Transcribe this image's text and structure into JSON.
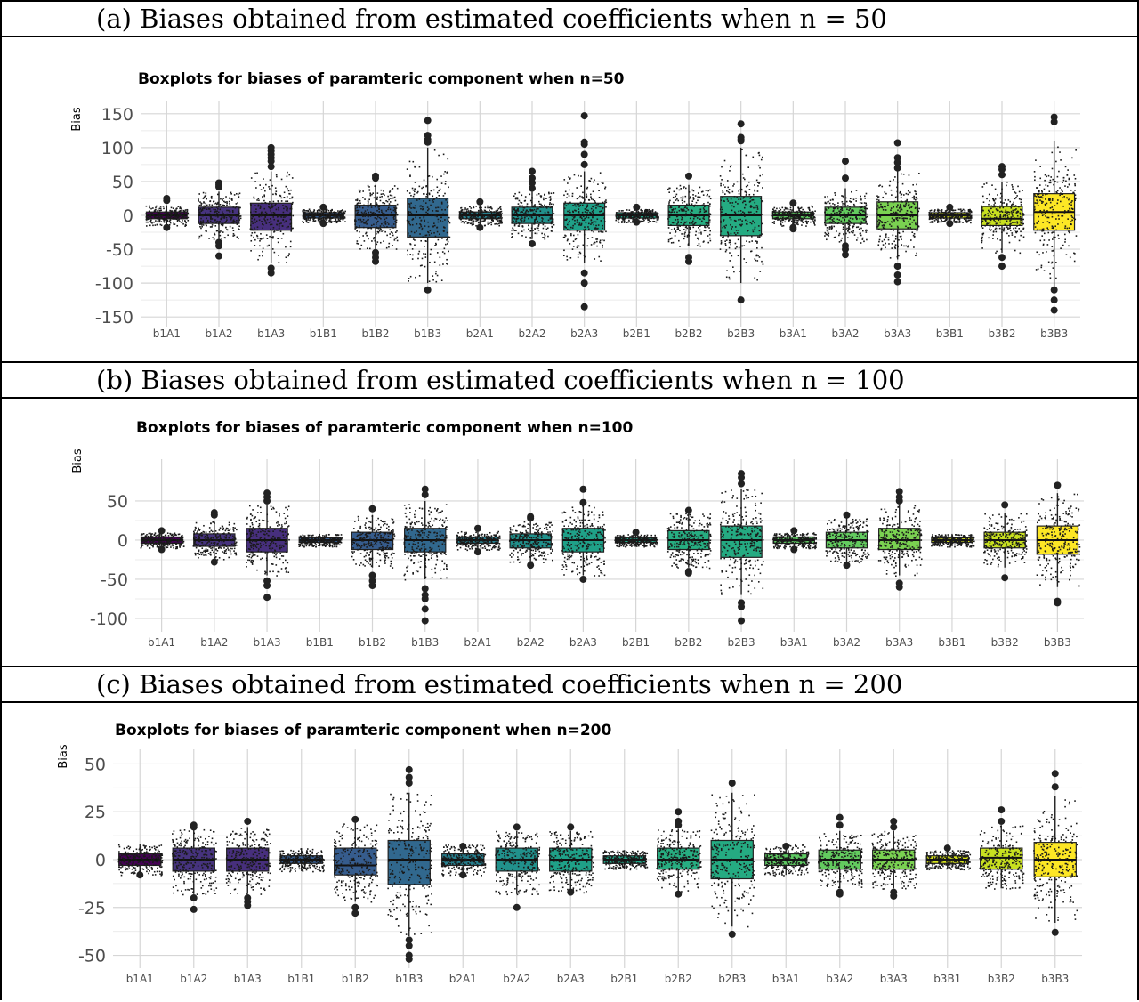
{
  "captions": [
    "(a)  Biases obtained from estimated coefficients when n = 50",
    "(b)  Biases obtained from estimated coefficients when n = 100",
    "(c)  Biases obtained from estimated coefficients when n = 200"
  ],
  "chart_data": [
    {
      "type": "boxplot",
      "title": "Boxplots for biases of paramteric component when n=50",
      "ylabel": "Bias",
      "xlabel": "",
      "ylim": [
        -155,
        155
      ],
      "yticks": [
        -150,
        -100,
        -50,
        0,
        50,
        100,
        150
      ],
      "grid": true,
      "categories": [
        "b1A1",
        "b1A2",
        "b1A3",
        "b1B1",
        "b1B2",
        "b1B3",
        "b2A1",
        "b2A2",
        "b2A3",
        "b2B1",
        "b2B2",
        "b2B3",
        "b3A1",
        "b3A2",
        "b3A3",
        "b3B1",
        "b3B2",
        "b3B3"
      ],
      "colors": [
        "#440154",
        "#46337e",
        "#472f7d",
        "#365c8d",
        "#365c8d",
        "#31688e",
        "#277f8e",
        "#21918c",
        "#1fa188",
        "#20a486",
        "#27ad81",
        "#25ab82",
        "#5ec962",
        "#63cb5f",
        "#7ad151",
        "#d5e21a",
        "#c8e020",
        "#fde725"
      ],
      "boxes": [
        {
          "q1": -5,
          "median": 0,
          "q3": 5,
          "lower": -15,
          "upper": 15,
          "outliers": [
            22,
            25,
            -18
          ]
        },
        {
          "q1": -12,
          "median": 0,
          "q3": 12,
          "lower": -35,
          "upper": 35,
          "outliers": [
            42,
            45,
            48,
            -40,
            -45,
            -60
          ]
        },
        {
          "q1": -22,
          "median": 0,
          "q3": 18,
          "lower": -70,
          "upper": 65,
          "outliers": [
            72,
            80,
            85,
            90,
            95,
            100,
            -78,
            -85
          ]
        },
        {
          "q1": -4,
          "median": 0,
          "q3": 4,
          "lower": -10,
          "upper": 10,
          "outliers": [
            12,
            -12
          ]
        },
        {
          "q1": -18,
          "median": 0,
          "q3": 15,
          "lower": -50,
          "upper": 45,
          "outliers": [
            55,
            58,
            -55,
            -62,
            -68
          ]
        },
        {
          "q1": -32,
          "median": 0,
          "q3": 25,
          "lower": -100,
          "upper": 100,
          "outliers": [
            108,
            112,
            118,
            140,
            -110
          ]
        },
        {
          "q1": -5,
          "median": 0,
          "q3": 5,
          "lower": -15,
          "upper": 15,
          "outliers": [
            20,
            -18
          ]
        },
        {
          "q1": -12,
          "median": 0,
          "q3": 12,
          "lower": -35,
          "upper": 35,
          "outliers": [
            40,
            48,
            55,
            65,
            -42
          ]
        },
        {
          "q1": -22,
          "median": 0,
          "q3": 18,
          "lower": -70,
          "upper": 65,
          "outliers": [
            75,
            90,
            105,
            108,
            147,
            -85,
            -100,
            -135
          ]
        },
        {
          "q1": -4,
          "median": 0,
          "q3": 4,
          "lower": -10,
          "upper": 10,
          "outliers": [
            12,
            -10
          ]
        },
        {
          "q1": -15,
          "median": 0,
          "q3": 15,
          "lower": -45,
          "upper": 45,
          "outliers": [
            58,
            -62,
            -68
          ]
        },
        {
          "q1": -30,
          "median": 0,
          "q3": 28,
          "lower": -100,
          "upper": 100,
          "outliers": [
            110,
            112,
            115,
            135,
            -125
          ]
        },
        {
          "q1": -5,
          "median": 0,
          "q3": 5,
          "lower": -15,
          "upper": 15,
          "outliers": [
            18,
            -18,
            -20
          ]
        },
        {
          "q1": -12,
          "median": 0,
          "q3": 12,
          "lower": -40,
          "upper": 40,
          "outliers": [
            55,
            80,
            -45,
            -50,
            -58
          ]
        },
        {
          "q1": -20,
          "median": 0,
          "q3": 20,
          "lower": -65,
          "upper": 65,
          "outliers": [
            70,
            78,
            85,
            107,
            -75,
            -88,
            -98
          ]
        },
        {
          "q1": -4,
          "median": 0,
          "q3": 4,
          "lower": -10,
          "upper": 10,
          "outliers": [
            12,
            -12
          ]
        },
        {
          "q1": -15,
          "median": -5,
          "q3": 13,
          "lower": -55,
          "upper": 50,
          "outliers": [
            60,
            68,
            72,
            -62,
            -75
          ]
        },
        {
          "q1": -22,
          "median": 5,
          "q3": 32,
          "lower": -105,
          "upper": 110,
          "outliers": [
            138,
            145,
            -110,
            -125,
            -140
          ]
        }
      ]
    },
    {
      "type": "boxplot",
      "title": "Boxplots for biases of paramteric component when n=100",
      "ylabel": "Bias",
      "xlabel": "",
      "ylim": [
        -108,
        92
      ],
      "yticks": [
        -100,
        -50,
        0,
        50
      ],
      "grid": true,
      "categories": [
        "b1A1",
        "b1A2",
        "b1A3",
        "b1B1",
        "b1B2",
        "b1B3",
        "b2A1",
        "b2A2",
        "b2A3",
        "b2B1",
        "b2B2",
        "b2B3",
        "b3A1",
        "b3A2",
        "b3A3",
        "b3B1",
        "b3B2",
        "b3B3"
      ],
      "colors": [
        "#440154",
        "#46337e",
        "#472f7d",
        "#365c8d",
        "#365c8d",
        "#31688e",
        "#277f8e",
        "#21918c",
        "#1fa188",
        "#20a486",
        "#27ad81",
        "#25ab82",
        "#5ec962",
        "#63cb5f",
        "#7ad151",
        "#d5e21a",
        "#c8e020",
        "#fde725"
      ],
      "boxes": [
        {
          "q1": -4,
          "median": 0,
          "q3": 4,
          "lower": -10,
          "upper": 10,
          "outliers": [
            12,
            -12
          ]
        },
        {
          "q1": -8,
          "median": 0,
          "q3": 8,
          "lower": -25,
          "upper": 25,
          "outliers": [
            32,
            35,
            -28
          ]
        },
        {
          "q1": -15,
          "median": 0,
          "q3": 15,
          "lower": -45,
          "upper": 45,
          "outliers": [
            50,
            55,
            60,
            -52,
            -58,
            -73
          ]
        },
        {
          "q1": -3,
          "median": 0,
          "q3": 3,
          "lower": -8,
          "upper": 8,
          "outliers": []
        },
        {
          "q1": -12,
          "median": 0,
          "q3": 10,
          "lower": -35,
          "upper": 32,
          "outliers": [
            40,
            -45,
            -52,
            -58
          ]
        },
        {
          "q1": -15,
          "median": 0,
          "q3": 15,
          "lower": -50,
          "upper": 50,
          "outliers": [
            58,
            65,
            -62,
            -70,
            -75,
            -88,
            -103
          ]
        },
        {
          "q1": -4,
          "median": 0,
          "q3": 4,
          "lower": -12,
          "upper": 12,
          "outliers": [
            15,
            -15
          ]
        },
        {
          "q1": -10,
          "median": 0,
          "q3": 8,
          "lower": -28,
          "upper": 25,
          "outliers": [
            28,
            30,
            -32
          ]
        },
        {
          "q1": -15,
          "median": 0,
          "q3": 15,
          "lower": -45,
          "upper": 45,
          "outliers": [
            48,
            65,
            -50
          ]
        },
        {
          "q1": -3,
          "median": 0,
          "q3": 3,
          "lower": -8,
          "upper": 8,
          "outliers": [
            10
          ]
        },
        {
          "q1": -12,
          "median": 0,
          "q3": 12,
          "lower": -35,
          "upper": 35,
          "outliers": [
            38,
            -40,
            -42
          ]
        },
        {
          "q1": -22,
          "median": 0,
          "q3": 18,
          "lower": -70,
          "upper": 65,
          "outliers": [
            72,
            80,
            85,
            -80,
            -85,
            -103
          ]
        },
        {
          "q1": -4,
          "median": 0,
          "q3": 4,
          "lower": -10,
          "upper": 10,
          "outliers": [
            12,
            -12
          ]
        },
        {
          "q1": -10,
          "median": 0,
          "q3": 10,
          "lower": -28,
          "upper": 28,
          "outliers": [
            32,
            -32
          ]
        },
        {
          "q1": -12,
          "median": 0,
          "q3": 15,
          "lower": -45,
          "upper": 45,
          "outliers": [
            50,
            55,
            62,
            -55,
            -60
          ]
        },
        {
          "q1": -3,
          "median": 0,
          "q3": 3,
          "lower": -8,
          "upper": 8,
          "outliers": []
        },
        {
          "q1": -10,
          "median": 0,
          "q3": 10,
          "lower": -35,
          "upper": 35,
          "outliers": [
            45,
            -48
          ]
        },
        {
          "q1": -18,
          "median": 0,
          "q3": 18,
          "lower": -60,
          "upper": 60,
          "outliers": [
            70,
            -78,
            -80
          ]
        }
      ]
    },
    {
      "type": "boxplot",
      "title": "Boxplots for biases of paramteric component when n=200",
      "ylabel": "Bias",
      "xlabel": "",
      "ylim": [
        -53,
        53
      ],
      "yticks": [
        -50,
        -25,
        0,
        25,
        50
      ],
      "grid": true,
      "categories": [
        "b1A1",
        "b1A2",
        "b1A3",
        "b1B1",
        "b1B2",
        "b1B3",
        "b2A1",
        "b2A2",
        "b2A3",
        "b2B1",
        "b2B2",
        "b2B3",
        "b3A1",
        "b3A2",
        "b3A3",
        "b3B1",
        "b3B2",
        "b3B3"
      ],
      "colors": [
        "#440154",
        "#46337e",
        "#472f7d",
        "#365c8d",
        "#365c8d",
        "#31688e",
        "#277f8e",
        "#21918c",
        "#1fa188",
        "#20a486",
        "#27ad81",
        "#25ab82",
        "#5ec962",
        "#63cb5f",
        "#7ad151",
        "#d5e21a",
        "#c8e020",
        "#fde725"
      ],
      "boxes": [
        {
          "q1": -3,
          "median": 0,
          "q3": 3,
          "lower": -8,
          "upper": 8,
          "outliers": [
            -8
          ]
        },
        {
          "q1": -6,
          "median": 0,
          "q3": 6,
          "lower": -18,
          "upper": 16,
          "outliers": [
            17,
            18,
            -20,
            -26
          ]
        },
        {
          "q1": -6,
          "median": 0,
          "q3": 6,
          "lower": -18,
          "upper": 17,
          "outliers": [
            20,
            -20,
            -22,
            -24
          ]
        },
        {
          "q1": -2,
          "median": 0,
          "q3": 2,
          "lower": -6,
          "upper": 6,
          "outliers": []
        },
        {
          "q1": -8,
          "median": -3,
          "q3": 6,
          "lower": -22,
          "upper": 20,
          "outliers": [
            21,
            -25,
            -28
          ]
        },
        {
          "q1": -13,
          "median": 0,
          "q3": 10,
          "lower": -40,
          "upper": 35,
          "outliers": [
            40,
            43,
            47,
            -42,
            -45,
            -50,
            -52
          ]
        },
        {
          "q1": -3,
          "median": 0,
          "q3": 3,
          "lower": -8,
          "upper": 8,
          "outliers": [
            7,
            -8
          ]
        },
        {
          "q1": -6,
          "median": 0,
          "q3": 6,
          "lower": -18,
          "upper": 15,
          "outliers": [
            17,
            -25
          ]
        },
        {
          "q1": -6,
          "median": 0,
          "q3": 6,
          "lower": -17,
          "upper": 15,
          "outliers": [
            17,
            -17
          ]
        },
        {
          "q1": -2,
          "median": 0,
          "q3": 2,
          "lower": -5,
          "upper": 5,
          "outliers": []
        },
        {
          "q1": -5,
          "median": 0,
          "q3": 6,
          "lower": -17,
          "upper": 16,
          "outliers": [
            18,
            20,
            25,
            -18
          ]
        },
        {
          "q1": -10,
          "median": 0,
          "q3": 10,
          "lower": -35,
          "upper": 35,
          "outliers": [
            40,
            -39
          ]
        },
        {
          "q1": -3,
          "median": 0,
          "q3": 3,
          "lower": -8,
          "upper": 8,
          "outliers": [
            7
          ]
        },
        {
          "q1": -5,
          "median": 0,
          "q3": 5,
          "lower": -15,
          "upper": 15,
          "outliers": [
            18,
            22,
            -17,
            -18
          ]
        },
        {
          "q1": -5,
          "median": 0,
          "q3": 5,
          "lower": -15,
          "upper": 15,
          "outliers": [
            17,
            20,
            -17,
            -19
          ]
        },
        {
          "q1": -2,
          "median": 0,
          "q3": 2,
          "lower": -5,
          "upper": 5,
          "outliers": [
            6
          ]
        },
        {
          "q1": -5,
          "median": 1,
          "q3": 6,
          "lower": -15,
          "upper": 18,
          "outliers": [
            20,
            26
          ]
        },
        {
          "q1": -9,
          "median": 0,
          "q3": 9,
          "lower": -33,
          "upper": 33,
          "outliers": [
            38,
            45,
            -38
          ]
        }
      ]
    }
  ]
}
